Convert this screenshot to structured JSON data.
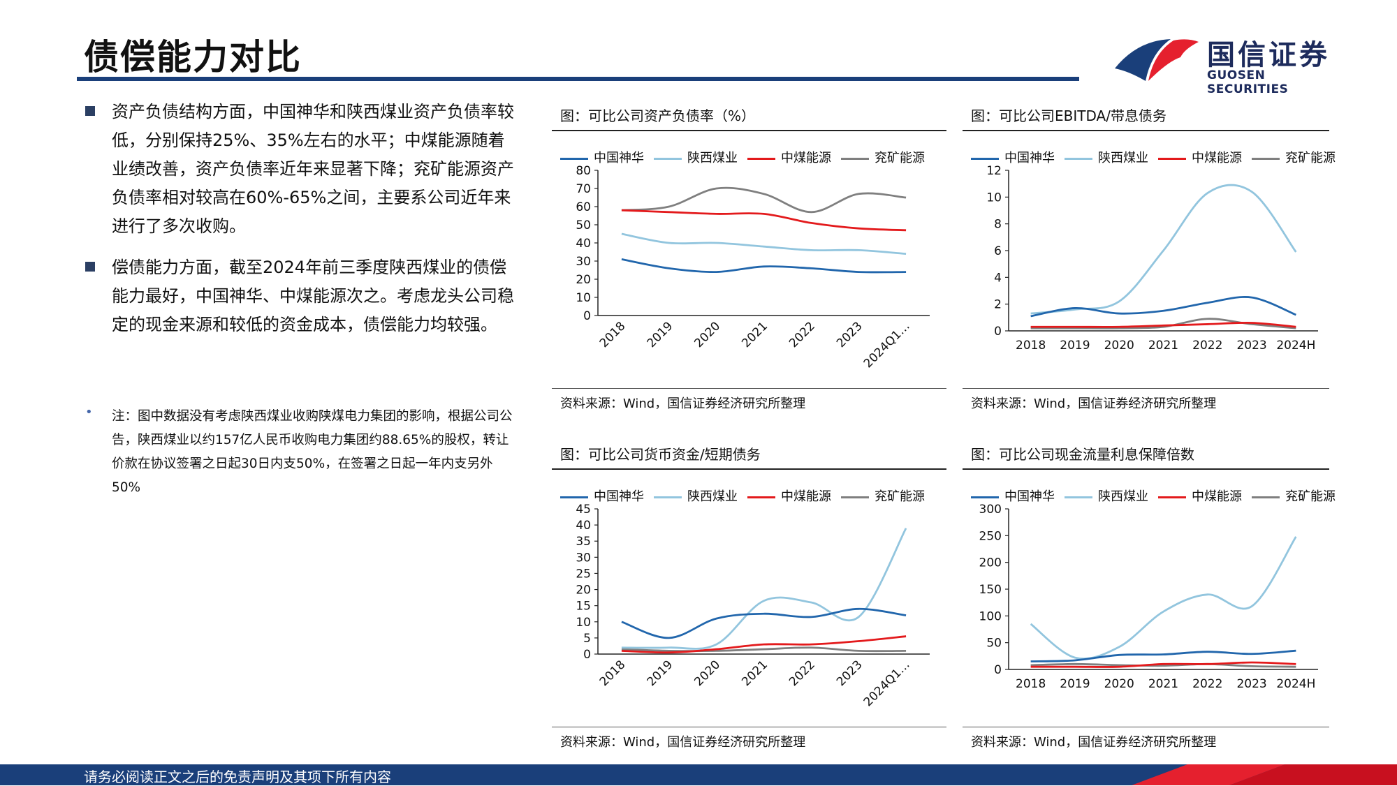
{
  "header": {
    "title": "债偿能力对比",
    "logo_name": "国信证券",
    "logo_sub": "GUOSEN SECURITIES",
    "colors": {
      "navy": "#1a3f7a",
      "red": "#e5202e"
    }
  },
  "bullets": [
    "资产负债结构方面，中国神华和陕西煤业资产负债率较低，分别保持25%、35%左右的水平；中煤能源随着业绩改善，资产负债率近年来显著下降；兖矿能源资产负债率相对较高在60%-65%之间，主要系公司近年来进行了多次收购。",
    "偿债能力方面，截至2024年前三季度陕西煤业的债偿能力最好，中国神华、中煤能源次之。考虑龙头公司稳定的现金来源和较低的资金成本，债偿能力均较强。"
  ],
  "note": {
    "marker": "•",
    "text": "注：图中数据没有考虑陕西煤业收购陕煤电力集团的影响，根据公司公告，陕西煤业以约157亿人民币收购电力集团约88.65%的股权，转让价款在协议签署之日起30日内支50%，在签署之日起一年内支另外50%"
  },
  "source_text": "资料来源：Wind，国信证券经济研究所整理",
  "footer": {
    "text": "请务必阅读正文之后的免责声明及其项下所有内容"
  },
  "series_colors": [
    "#2166ac",
    "#92c5de",
    "#e31a1c",
    "#7f7f7f"
  ],
  "chart_data": [
    {
      "type": "line",
      "title": "图：可比公司资产负债率（%）",
      "categories": [
        "2018",
        "2019",
        "2020",
        "2021",
        "2022",
        "2023",
        "2024Q1…"
      ],
      "ylim": [
        0,
        80
      ],
      "yticks": [
        0,
        10,
        20,
        30,
        40,
        50,
        60,
        70,
        80
      ],
      "rotated_labels": true,
      "series": [
        {
          "name": "中国神华",
          "values": [
            31,
            26,
            24,
            27,
            26,
            24,
            24
          ]
        },
        {
          "name": "陕西煤业",
          "values": [
            45,
            40,
            40,
            38,
            36,
            36,
            34
          ]
        },
        {
          "name": "中煤能源",
          "values": [
            58,
            57,
            56,
            56,
            51,
            48,
            47
          ]
        },
        {
          "name": "兖矿能源",
          "values": [
            58,
            60,
            70,
            67,
            57,
            67,
            65
          ]
        }
      ]
    },
    {
      "type": "line",
      "title": "图：可比公司EBITDA/带息债务",
      "categories": [
        "2018",
        "2019",
        "2020",
        "2021",
        "2022",
        "2023",
        "2024H"
      ],
      "ylim": [
        0,
        12
      ],
      "yticks": [
        0,
        2,
        4,
        6,
        8,
        10,
        12
      ],
      "rotated_labels": false,
      "series": [
        {
          "name": "中国神华",
          "values": [
            1.1,
            1.7,
            1.3,
            1.5,
            2.1,
            2.5,
            1.2
          ]
        },
        {
          "name": "陕西煤业",
          "values": [
            1.3,
            1.6,
            2.2,
            6.0,
            10.3,
            10.4,
            5.9
          ]
        },
        {
          "name": "中煤能源",
          "values": [
            0.3,
            0.3,
            0.3,
            0.4,
            0.5,
            0.6,
            0.3
          ]
        },
        {
          "name": "兖矿能源",
          "values": [
            0.2,
            0.2,
            0.2,
            0.3,
            0.9,
            0.5,
            0.2
          ]
        }
      ]
    },
    {
      "type": "line",
      "title": "图：可比公司货币资金/短期债务",
      "categories": [
        "2018",
        "2019",
        "2020",
        "2021",
        "2022",
        "2023",
        "2024Q1…"
      ],
      "ylim": [
        0,
        45
      ],
      "yticks": [
        0,
        5,
        10,
        15,
        20,
        25,
        30,
        35,
        40,
        45
      ],
      "rotated_labels": true,
      "series": [
        {
          "name": "中国神华",
          "values": [
            10,
            5,
            11,
            12.5,
            11.5,
            14,
            12
          ]
        },
        {
          "name": "陕西煤业",
          "values": [
            2,
            2,
            3,
            16.5,
            16,
            11.5,
            39
          ]
        },
        {
          "name": "中煤能源",
          "values": [
            1,
            0.5,
            1.5,
            3,
            3,
            4,
            5.5
          ]
        },
        {
          "name": "兖矿能源",
          "values": [
            1.5,
            1,
            1,
            1.5,
            2,
            1,
            1
          ]
        }
      ]
    },
    {
      "type": "line",
      "title": "图：可比公司现金流量利息保障倍数",
      "categories": [
        "2018",
        "2019",
        "2020",
        "2021",
        "2022",
        "2023",
        "2024H"
      ],
      "ylim": [
        0,
        300
      ],
      "yticks": [
        0,
        50,
        100,
        150,
        200,
        250,
        300
      ],
      "rotated_labels": false,
      "series": [
        {
          "name": "中国神华",
          "values": [
            15,
            17,
            27,
            28,
            33,
            29,
            35
          ]
        },
        {
          "name": "陕西煤业",
          "values": [
            85,
            22,
            42,
            108,
            140,
            118,
            248
          ]
        },
        {
          "name": "中煤能源",
          "values": [
            5,
            5,
            5,
            10,
            10,
            13,
            10
          ]
        },
        {
          "name": "兖矿能源",
          "values": [
            8,
            10,
            8,
            7,
            10,
            6,
            5
          ]
        }
      ]
    }
  ]
}
